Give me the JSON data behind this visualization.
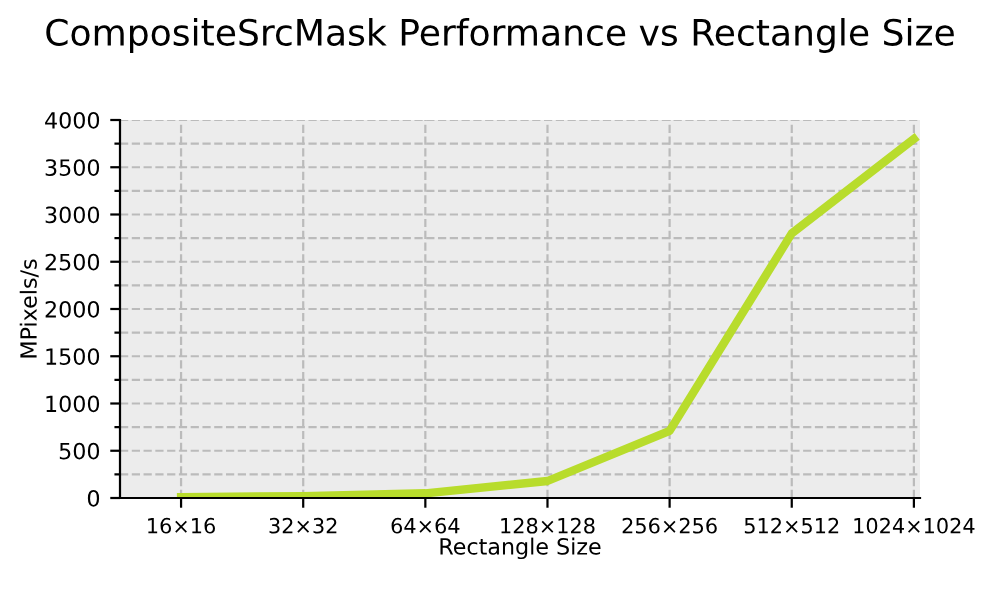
{
  "chart_data": {
    "type": "line",
    "title": "CompositeSrcMask Performance vs Rectangle Size",
    "xlabel": "Rectangle Size",
    "ylabel": "MPixels/s",
    "categories": [
      "16×16",
      "32×32",
      "64×64",
      "128×128",
      "256×256",
      "512×512",
      "1024×1024"
    ],
    "series": [
      {
        "color": "#b8dc2c",
        "values": [
          10,
          20,
          50,
          180,
          710,
          2800,
          3800
        ]
      }
    ],
    "ylim": [
      0,
      4000
    ],
    "yticks": [
      0,
      {
        "value": 250,
        "label": null
      },
      500,
      {
        "value": 750,
        "label": null
      },
      1000,
      {
        "value": 1250,
        "label": null
      },
      1500,
      {
        "value": 1750,
        "label": null
      },
      2000,
      {
        "value": 2250,
        "label": null
      },
      2500,
      {
        "value": 2750,
        "label": null
      },
      3000,
      {
        "value": 3250,
        "label": null
      },
      3500,
      {
        "value": 3750,
        "label": null
      },
      4000
    ],
    "grid": true,
    "marker": "none",
    "line_style": "solid"
  }
}
